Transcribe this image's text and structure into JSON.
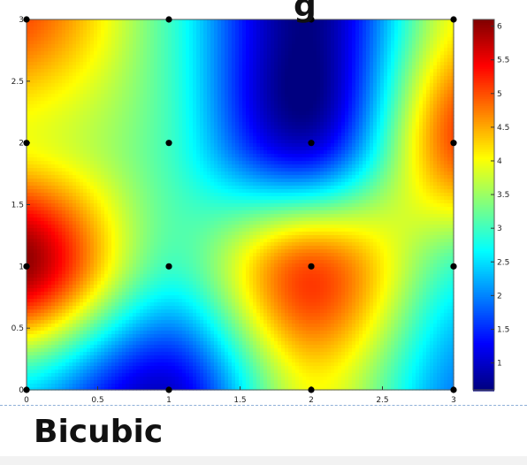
{
  "top_clipped_glyph": "g",
  "caption": "Bicubic",
  "colors": {
    "caption": "#111111",
    "dash_line": "#8fb0d8",
    "marker": "#000000"
  },
  "chart_data": {
    "type": "heatmap",
    "colormap": "jet",
    "interpolation": "bicubic",
    "title": "",
    "xlabel": "",
    "ylabel": "",
    "xlim": [
      0,
      3
    ],
    "ylim": [
      0,
      3
    ],
    "x_tick_labels": [
      "0",
      "0.5",
      "1",
      "1.5",
      "2",
      "2.5",
      "3"
    ],
    "y_tick_labels": [
      "0",
      "0.5",
      "1",
      "1.5",
      "2",
      "2.5",
      "3"
    ],
    "x_grid": [
      0,
      1,
      2,
      3
    ],
    "y_grid": [
      0,
      1,
      2,
      3
    ],
    "z": [
      [
        2.5,
        1.0,
        4.0,
        2.0
      ],
      [
        6.0,
        3.0,
        5.0,
        3.0
      ],
      [
        4.0,
        3.0,
        1.0,
        5.0
      ],
      [
        5.0,
        3.0,
        0.6,
        4.0
      ]
    ],
    "points": [
      {
        "x": 0,
        "y": 0
      },
      {
        "x": 1,
        "y": 0
      },
      {
        "x": 2,
        "y": 0
      },
      {
        "x": 3,
        "y": 0
      },
      {
        "x": 0,
        "y": 1
      },
      {
        "x": 1,
        "y": 1
      },
      {
        "x": 2,
        "y": 1
      },
      {
        "x": 3,
        "y": 1
      },
      {
        "x": 0,
        "y": 2
      },
      {
        "x": 1,
        "y": 2
      },
      {
        "x": 2,
        "y": 2
      },
      {
        "x": 3,
        "y": 2
      },
      {
        "x": 0,
        "y": 3
      },
      {
        "x": 1,
        "y": 3
      },
      {
        "x": 2,
        "y": 3
      },
      {
        "x": 3,
        "y": 3
      }
    ],
    "colorbar": {
      "range": [
        0.6,
        6.1
      ],
      "tick_labels": [
        "1",
        "1.5",
        "2",
        "2.5",
        "3",
        "3.5",
        "4",
        "4.5",
        "5",
        "5.5",
        "6"
      ],
      "tick_values": [
        1,
        1.5,
        2,
        2.5,
        3,
        3.5,
        4,
        4.5,
        5,
        5.5,
        6
      ]
    },
    "grid": false,
    "legend": "none"
  }
}
